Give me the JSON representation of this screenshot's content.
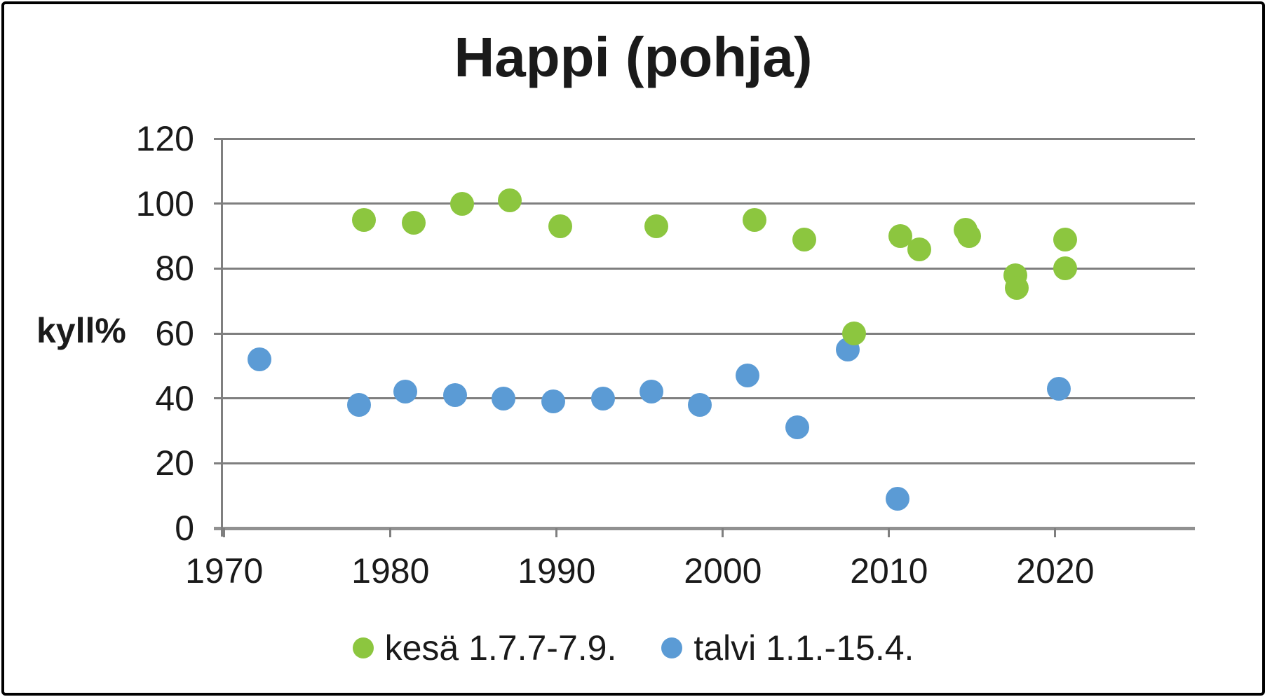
{
  "chart_data": {
    "type": "scatter",
    "title": "Happi (pohja)",
    "ylabel": "kyll%",
    "xlabel": "",
    "grid": true,
    "legend_position": "bottom",
    "xlim": [
      1969.8,
      2028.4
    ],
    "ylim": [
      0,
      120
    ],
    "yticks": [
      0,
      20,
      40,
      60,
      80,
      100,
      120
    ],
    "xticks": [
      1970,
      1980,
      1990,
      2000,
      2010,
      2020
    ],
    "colors": {
      "kesa": "#8CC63F",
      "talvi": "#5B9BD5",
      "gridline": "#7F7F7F",
      "axis": "#919191",
      "text": "#1A1A1A"
    },
    "series": [
      {
        "name": "kesä 1.7.7-7.9.",
        "color": "#8CC63F",
        "points": [
          {
            "x": 1978.4,
            "y": 95
          },
          {
            "x": 1981.4,
            "y": 94
          },
          {
            "x": 1984.3,
            "y": 100
          },
          {
            "x": 1987.2,
            "y": 101
          },
          {
            "x": 1990.2,
            "y": 93
          },
          {
            "x": 1996.0,
            "y": 93
          },
          {
            "x": 2001.9,
            "y": 95
          },
          {
            "x": 2004.9,
            "y": 89
          },
          {
            "x": 2007.9,
            "y": 60
          },
          {
            "x": 2010.7,
            "y": 90
          },
          {
            "x": 2011.8,
            "y": 86
          },
          {
            "x": 2014.6,
            "y": 92
          },
          {
            "x": 2014.8,
            "y": 90
          },
          {
            "x": 2017.6,
            "y": 78
          },
          {
            "x": 2017.7,
            "y": 74
          },
          {
            "x": 2020.6,
            "y": 89
          },
          {
            "x": 2020.6,
            "y": 80
          }
        ]
      },
      {
        "name": "talvi 1.1.-15.4.",
        "color": "#5B9BD5",
        "points": [
          {
            "x": 1972.1,
            "y": 52
          },
          {
            "x": 1978.1,
            "y": 38
          },
          {
            "x": 1980.9,
            "y": 42
          },
          {
            "x": 1983.9,
            "y": 41
          },
          {
            "x": 1986.8,
            "y": 40
          },
          {
            "x": 1989.8,
            "y": 39
          },
          {
            "x": 1992.8,
            "y": 40
          },
          {
            "x": 1995.7,
            "y": 42
          },
          {
            "x": 1998.6,
            "y": 38
          },
          {
            "x": 2001.5,
            "y": 47
          },
          {
            "x": 2004.5,
            "y": 31
          },
          {
            "x": 2007.5,
            "y": 55
          },
          {
            "x": 2010.5,
            "y": 9
          },
          {
            "x": 2020.2,
            "y": 43
          }
        ]
      }
    ]
  }
}
